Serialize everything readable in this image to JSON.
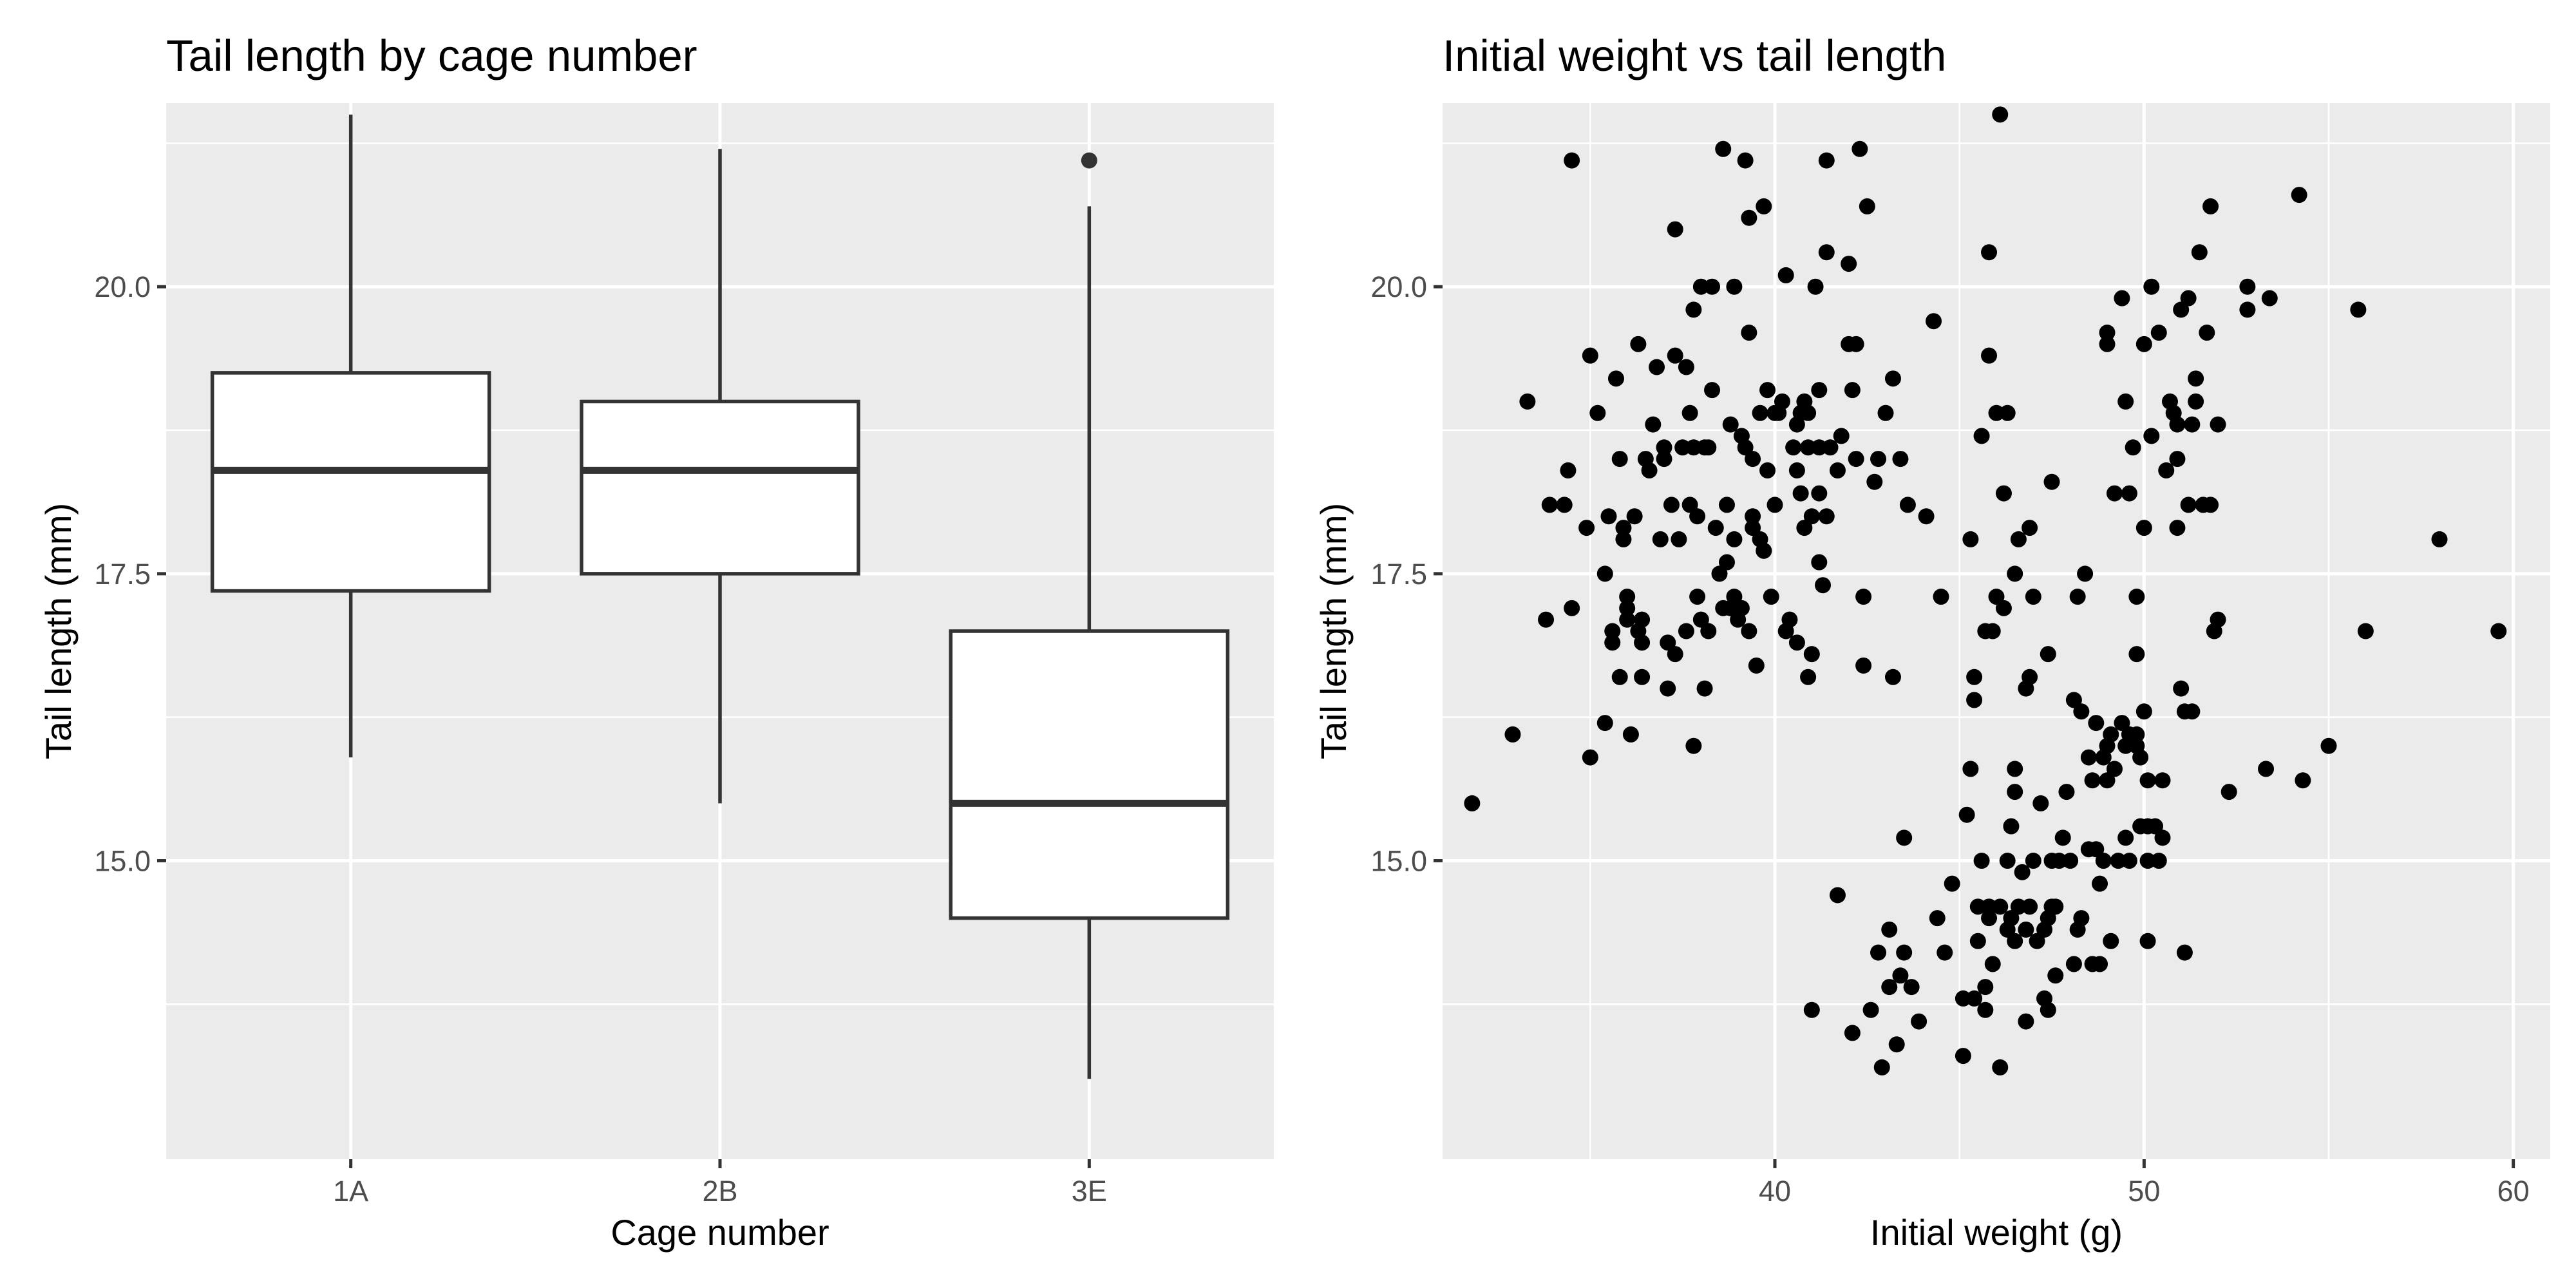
{
  "chart_data": [
    {
      "type": "box",
      "title": "Tail length by cage number",
      "xlabel": "Cage number",
      "ylabel": "Tail length (mm)",
      "ylim": [
        12.4,
        21.6
      ],
      "y_major_ticks": [
        15.0,
        17.5,
        20.0
      ],
      "y_minor_ticks": [
        13.75,
        16.25,
        18.75,
        21.25
      ],
      "y_tick_labels": [
        "15.0",
        "17.5",
        "20.0"
      ],
      "grid": true,
      "categories": [
        "1A",
        "2B",
        "3E"
      ],
      "boxes": [
        {
          "category": "1A",
          "whisker_low": 15.9,
          "q1": 17.35,
          "median": 18.4,
          "q3": 19.25,
          "whisker_high": 21.5,
          "outliers": []
        },
        {
          "category": "2B",
          "whisker_low": 15.5,
          "q1": 17.5,
          "median": 18.4,
          "q3": 19.0,
          "whisker_high": 21.2,
          "outliers": []
        },
        {
          "category": "3E",
          "whisker_low": 13.1,
          "q1": 14.5,
          "median": 15.5,
          "q3": 17.0,
          "whisker_high": 20.7,
          "outliers": [
            21.1
          ]
        }
      ]
    },
    {
      "type": "scatter",
      "title": "Initial weight vs tail length",
      "xlabel": "Initial weight (g)",
      "ylabel": "Tail length (mm)",
      "xlim": [
        31.0,
        61.0
      ],
      "ylim": [
        12.4,
        21.6
      ],
      "x_major_ticks": [
        40,
        50,
        60
      ],
      "x_minor_ticks": [
        35,
        45,
        55
      ],
      "x_tick_labels": [
        "40",
        "50",
        "60"
      ],
      "y_major_ticks": [
        15.0,
        17.5,
        20.0
      ],
      "y_minor_ticks": [
        13.75,
        16.25,
        18.75,
        21.25
      ],
      "y_tick_labels": [
        "15.0",
        "17.5",
        "20.0"
      ],
      "grid": true,
      "points": [
        [
          31.8,
          15.5
        ],
        [
          32.9,
          16.1
        ],
        [
          33.3,
          19.0
        ],
        [
          33.8,
          17.1
        ],
        [
          33.9,
          18.1
        ],
        [
          34.3,
          18.1
        ],
        [
          34.4,
          18.4
        ],
        [
          34.5,
          21.1
        ],
        [
          34.5,
          17.2
        ],
        [
          34.9,
          17.9
        ],
        [
          35.0,
          15.9
        ],
        [
          35.0,
          19.4
        ],
        [
          35.2,
          18.9
        ],
        [
          35.4,
          16.2
        ],
        [
          35.4,
          17.5
        ],
        [
          35.5,
          18.0
        ],
        [
          35.6,
          17.0
        ],
        [
          35.6,
          16.9
        ],
        [
          35.7,
          19.2
        ],
        [
          35.8,
          16.6
        ],
        [
          35.8,
          18.5
        ],
        [
          35.9,
          17.8
        ],
        [
          35.9,
          17.9
        ],
        [
          36.0,
          17.2
        ],
        [
          36.0,
          17.3
        ],
        [
          36.0,
          17.1
        ],
        [
          36.1,
          16.1
        ],
        [
          36.2,
          18.0
        ],
        [
          36.3,
          19.5
        ],
        [
          36.3,
          17.0
        ],
        [
          36.4,
          16.9
        ],
        [
          36.4,
          17.1
        ],
        [
          36.4,
          16.6
        ],
        [
          36.5,
          18.5
        ],
        [
          36.6,
          18.4
        ],
        [
          36.7,
          18.8
        ],
        [
          36.8,
          19.3
        ],
        [
          36.9,
          17.8
        ],
        [
          37.0,
          18.5
        ],
        [
          37.0,
          18.6
        ],
        [
          37.1,
          16.5
        ],
        [
          37.1,
          16.9
        ],
        [
          37.2,
          18.1
        ],
        [
          37.3,
          19.4
        ],
        [
          37.3,
          16.8
        ],
        [
          37.3,
          20.5
        ],
        [
          37.4,
          17.8
        ],
        [
          37.5,
          18.6
        ],
        [
          37.6,
          19.3
        ],
        [
          37.6,
          17.0
        ],
        [
          37.7,
          18.1
        ],
        [
          37.7,
          18.9
        ],
        [
          37.8,
          16.0
        ],
        [
          37.8,
          18.6
        ],
        [
          37.8,
          19.8
        ],
        [
          37.9,
          18.0
        ],
        [
          37.9,
          17.3
        ],
        [
          38.0,
          17.1
        ],
        [
          38.0,
          20.0
        ],
        [
          38.1,
          18.6
        ],
        [
          38.1,
          16.5
        ],
        [
          38.2,
          17.0
        ],
        [
          38.2,
          18.6
        ],
        [
          38.3,
          19.1
        ],
        [
          38.3,
          20.0
        ],
        [
          38.4,
          17.9
        ],
        [
          38.5,
          17.5
        ],
        [
          38.6,
          17.2
        ],
        [
          38.6,
          21.2
        ],
        [
          38.7,
          17.6
        ],
        [
          38.7,
          18.1
        ],
        [
          38.8,
          17.2
        ],
        [
          38.8,
          18.8
        ],
        [
          38.9,
          20.0
        ],
        [
          38.9,
          17.8
        ],
        [
          38.9,
          17.3
        ],
        [
          39.0,
          17.1
        ],
        [
          39.1,
          18.7
        ],
        [
          39.1,
          17.2
        ],
        [
          39.2,
          18.6
        ],
        [
          39.2,
          21.1
        ],
        [
          39.3,
          19.6
        ],
        [
          39.3,
          20.6
        ],
        [
          39.3,
          17.0
        ],
        [
          39.4,
          18.5
        ],
        [
          39.4,
          18.0
        ],
        [
          39.4,
          17.9
        ],
        [
          39.5,
          16.7
        ],
        [
          39.6,
          17.8
        ],
        [
          39.6,
          18.9
        ],
        [
          39.7,
          17.7
        ],
        [
          39.7,
          17.7
        ],
        [
          39.7,
          20.7
        ],
        [
          39.8,
          19.1
        ],
        [
          39.8,
          18.4
        ],
        [
          39.9,
          17.3
        ],
        [
          40.0,
          18.9
        ],
        [
          40.0,
          18.1
        ],
        [
          40.1,
          18.9
        ],
        [
          40.2,
          19.0
        ],
        [
          40.3,
          20.1
        ],
        [
          40.3,
          17.0
        ],
        [
          40.4,
          17.1
        ],
        [
          40.5,
          18.6
        ],
        [
          40.6,
          18.8
        ],
        [
          40.6,
          18.4
        ],
        [
          40.6,
          16.9
        ],
        [
          40.7,
          18.2
        ],
        [
          40.7,
          18.9
        ],
        [
          40.8,
          17.9
        ],
        [
          40.8,
          19.0
        ],
        [
          40.9,
          18.6
        ],
        [
          40.9,
          18.9
        ],
        [
          40.9,
          16.6
        ],
        [
          41.0,
          18.0
        ],
        [
          41.0,
          16.8
        ],
        [
          41.0,
          13.7
        ],
        [
          41.1,
          20.0
        ],
        [
          41.2,
          18.2
        ],
        [
          41.2,
          17.6
        ],
        [
          41.2,
          18.6
        ],
        [
          41.2,
          19.1
        ],
        [
          41.3,
          17.4
        ],
        [
          41.4,
          18.0
        ],
        [
          41.4,
          20.3
        ],
        [
          41.4,
          21.1
        ],
        [
          41.5,
          18.6
        ],
        [
          41.7,
          18.4
        ],
        [
          41.7,
          14.7
        ],
        [
          41.8,
          18.7
        ],
        [
          42.0,
          20.2
        ],
        [
          42.0,
          19.5
        ],
        [
          42.1,
          19.1
        ],
        [
          42.1,
          13.5
        ],
        [
          42.2,
          18.5
        ],
        [
          42.2,
          19.5
        ],
        [
          42.3,
          21.2
        ],
        [
          42.4,
          17.3
        ],
        [
          42.4,
          16.7
        ],
        [
          42.5,
          20.7
        ],
        [
          42.6,
          13.7
        ],
        [
          42.7,
          18.3
        ],
        [
          42.8,
          14.2
        ],
        [
          42.8,
          18.5
        ],
        [
          42.9,
          13.2
        ],
        [
          43.0,
          18.9
        ],
        [
          43.1,
          14.4
        ],
        [
          43.1,
          13.9
        ],
        [
          43.2,
          19.2
        ],
        [
          43.2,
          16.6
        ],
        [
          43.3,
          13.4
        ],
        [
          43.4,
          18.5
        ],
        [
          43.4,
          14.0
        ],
        [
          43.5,
          14.2
        ],
        [
          43.5,
          15.2
        ],
        [
          43.6,
          18.1
        ],
        [
          43.7,
          13.9
        ],
        [
          43.9,
          13.6
        ],
        [
          44.1,
          18.0
        ],
        [
          44.3,
          19.7
        ],
        [
          44.4,
          14.5
        ],
        [
          44.5,
          17.3
        ],
        [
          44.6,
          14.2
        ],
        [
          44.8,
          14.8
        ],
        [
          45.1,
          13.3
        ],
        [
          45.1,
          13.8
        ],
        [
          45.2,
          15.4
        ],
        [
          45.3,
          15.8
        ],
        [
          45.3,
          17.8
        ],
        [
          45.4,
          16.4
        ],
        [
          45.4,
          13.8
        ],
        [
          45.4,
          16.6
        ],
        [
          45.5,
          14.3
        ],
        [
          45.5,
          14.6
        ],
        [
          45.6,
          18.7
        ],
        [
          45.6,
          15.0
        ],
        [
          45.7,
          17.0
        ],
        [
          45.7,
          13.9
        ],
        [
          45.7,
          13.7
        ],
        [
          45.8,
          14.5
        ],
        [
          45.8,
          14.6
        ],
        [
          45.8,
          19.4
        ],
        [
          45.8,
          20.3
        ],
        [
          45.9,
          17.0
        ],
        [
          45.9,
          14.1
        ],
        [
          46.0,
          18.9
        ],
        [
          46.0,
          17.3
        ],
        [
          46.1,
          14.6
        ],
        [
          46.1,
          13.2
        ],
        [
          46.1,
          21.5
        ],
        [
          46.2,
          17.2
        ],
        [
          46.3,
          18.9
        ],
        [
          46.2,
          18.2
        ],
        [
          46.3,
          15.0
        ],
        [
          46.3,
          14.4
        ],
        [
          46.4,
          15.3
        ],
        [
          46.4,
          14.5
        ],
        [
          46.5,
          15.8
        ],
        [
          46.5,
          17.5
        ],
        [
          46.5,
          14.3
        ],
        [
          46.5,
          15.6
        ],
        [
          46.6,
          14.6
        ],
        [
          46.6,
          17.8
        ],
        [
          46.7,
          14.9
        ],
        [
          46.8,
          14.4
        ],
        [
          46.8,
          16.5
        ],
        [
          46.8,
          13.6
        ],
        [
          46.9,
          16.6
        ],
        [
          46.9,
          17.9
        ],
        [
          46.9,
          14.6
        ],
        [
          47.0,
          15.0
        ],
        [
          47.0,
          17.3
        ],
        [
          47.1,
          14.3
        ],
        [
          47.2,
          15.5
        ],
        [
          47.3,
          13.8
        ],
        [
          47.3,
          14.4
        ],
        [
          47.4,
          14.5
        ],
        [
          47.4,
          13.7
        ],
        [
          47.4,
          16.8
        ],
        [
          47.5,
          14.6
        ],
        [
          47.5,
          15.0
        ],
        [
          47.5,
          18.3
        ],
        [
          47.6,
          14.0
        ],
        [
          47.6,
          14.6
        ],
        [
          47.7,
          15.0
        ],
        [
          47.8,
          15.2
        ],
        [
          47.9,
          15.6
        ],
        [
          48.0,
          15.0
        ],
        [
          48.1,
          14.1
        ],
        [
          48.1,
          16.4
        ],
        [
          48.2,
          17.3
        ],
        [
          48.2,
          14.4
        ],
        [
          48.3,
          16.3
        ],
        [
          48.3,
          14.5
        ],
        [
          48.4,
          17.5
        ],
        [
          48.5,
          15.1
        ],
        [
          48.5,
          15.9
        ],
        [
          48.6,
          15.7
        ],
        [
          48.6,
          14.1
        ],
        [
          48.7,
          15.1
        ],
        [
          48.7,
          16.2
        ],
        [
          48.8,
          14.8
        ],
        [
          48.8,
          14.1
        ],
        [
          48.9,
          15.9
        ],
        [
          48.9,
          15.0
        ],
        [
          49.0,
          16.0
        ],
        [
          49.0,
          15.7
        ],
        [
          49.0,
          19.6
        ],
        [
          49.0,
          19.5
        ],
        [
          49.1,
          14.3
        ],
        [
          49.1,
          16.1
        ],
        [
          49.2,
          15.8
        ],
        [
          49.2,
          18.2
        ],
        [
          49.3,
          15.0
        ],
        [
          49.4,
          16.2
        ],
        [
          49.4,
          19.9
        ],
        [
          49.5,
          16.0
        ],
        [
          49.5,
          19.0
        ],
        [
          49.5,
          15.2
        ],
        [
          49.6,
          16.1
        ],
        [
          49.6,
          15.0
        ],
        [
          49.6,
          18.2
        ],
        [
          49.7,
          18.6
        ],
        [
          49.8,
          17.3
        ],
        [
          49.8,
          16.8
        ],
        [
          49.8,
          16.1
        ],
        [
          49.8,
          16.0
        ],
        [
          49.9,
          15.3
        ],
        [
          49.9,
          15.9
        ],
        [
          50.0,
          17.9
        ],
        [
          50.0,
          16.3
        ],
        [
          50.0,
          19.5
        ],
        [
          50.1,
          15.7
        ],
        [
          50.1,
          15.0
        ],
        [
          50.1,
          15.3
        ],
        [
          50.1,
          14.3
        ],
        [
          50.2,
          18.7
        ],
        [
          50.2,
          20.0
        ],
        [
          50.3,
          15.3
        ],
        [
          50.4,
          19.6
        ],
        [
          50.4,
          15.0
        ],
        [
          50.5,
          15.2
        ],
        [
          50.5,
          15.7
        ],
        [
          50.6,
          18.4
        ],
        [
          50.7,
          19.0
        ],
        [
          50.8,
          18.9
        ],
        [
          50.9,
          18.5
        ],
        [
          50.9,
          18.8
        ],
        [
          50.9,
          17.9
        ],
        [
          51.0,
          19.8
        ],
        [
          51.0,
          16.5
        ],
        [
          51.1,
          16.3
        ],
        [
          51.1,
          14.2
        ],
        [
          51.2,
          19.9
        ],
        [
          51.2,
          18.1
        ],
        [
          51.3,
          18.8
        ],
        [
          51.3,
          16.3
        ],
        [
          51.4,
          19.2
        ],
        [
          51.4,
          19.0
        ],
        [
          51.5,
          20.3
        ],
        [
          51.6,
          18.1
        ],
        [
          51.7,
          19.6
        ],
        [
          51.8,
          18.1
        ],
        [
          51.8,
          20.7
        ],
        [
          51.9,
          17.0
        ],
        [
          52.0,
          17.1
        ],
        [
          52.0,
          18.8
        ],
        [
          52.3,
          15.6
        ],
        [
          52.8,
          19.8
        ],
        [
          52.8,
          20.0
        ],
        [
          53.3,
          15.8
        ],
        [
          53.4,
          19.9
        ],
        [
          54.2,
          20.8
        ],
        [
          54.3,
          15.7
        ],
        [
          55.0,
          16.0
        ],
        [
          55.8,
          19.8
        ],
        [
          56.0,
          17.0
        ],
        [
          58.0,
          17.8
        ],
        [
          59.6,
          17.0
        ]
      ]
    }
  ]
}
